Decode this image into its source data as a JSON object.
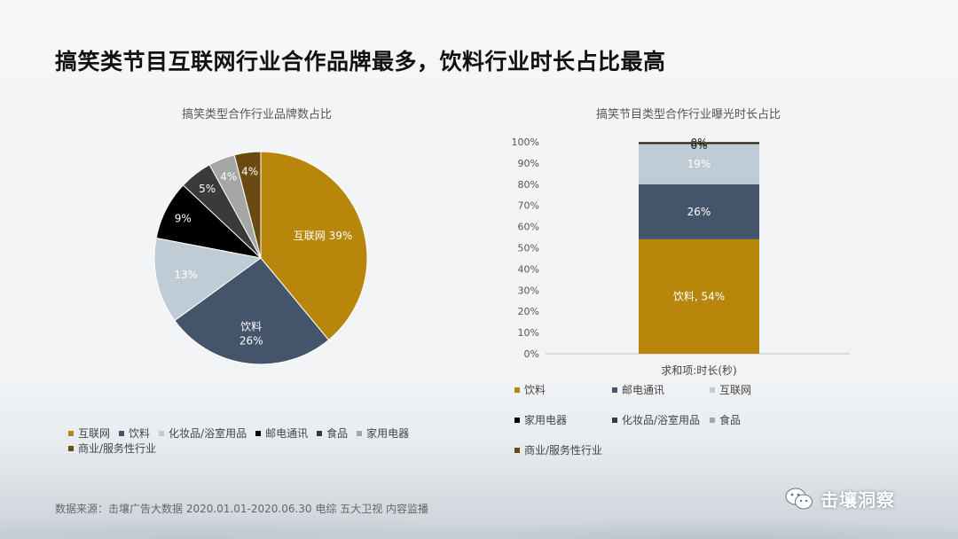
{
  "title": "搞笑类节目互联网行业合作品牌最多，饮料行业时长占比最高",
  "source": "数据来源：击壤广告大数据 2020.01.01-2020.06.30 电综 五大卫视 内容监播",
  "brand": {
    "name": "击壤洞察",
    "icon": "wechat-icon"
  },
  "chart_data": [
    {
      "type": "pie",
      "title": "搞笑类型合作行业品牌数占比",
      "legend_position": "bottom",
      "slices": [
        {
          "name": "互联网",
          "value": 39,
          "color": "#b8860b",
          "label": "互联网 39%",
          "label_color": "#ffffff"
        },
        {
          "name": "饮料",
          "value": 26,
          "color": "#44546a",
          "label": "饮料\n26%",
          "label_color": "#ffffff"
        },
        {
          "name": "化妆品/浴室用品",
          "value": 13,
          "color": "#bfcbd5",
          "label": "13%",
          "label_color": "#ffffff"
        },
        {
          "name": "邮电通讯",
          "value": 9,
          "color": "#000000",
          "label": "9%",
          "label_color": "#ffffff"
        },
        {
          "name": "食品",
          "value": 5,
          "color": "#3a3a3a",
          "label": "5%",
          "label_color": "#ffffff"
        },
        {
          "name": "家用电器",
          "value": 4,
          "color": "#a6a6a6",
          "label": "4%",
          "label_color": "#ffffff"
        },
        {
          "name": "商业/服务性行业",
          "value": 4,
          "color": "#6b4a12",
          "label": "4%",
          "label_color": "#ffffff"
        }
      ]
    },
    {
      "type": "bar",
      "stacked": true,
      "percent": true,
      "title": "搞笑节目类型合作行业曝光时长占比",
      "xlabel": "求和项:时长(秒)",
      "ylim": [
        0,
        100
      ],
      "yticks": [
        "0%",
        "10%",
        "20%",
        "30%",
        "40%",
        "50%",
        "60%",
        "70%",
        "80%",
        "90%",
        "100%"
      ],
      "legend_position": "bottom",
      "series": [
        {
          "name": "饮料",
          "value": 54,
          "color": "#b8860b",
          "label": "饮料, 54%",
          "label_color": "#ffffff"
        },
        {
          "name": "邮电通讯",
          "value": 26,
          "color": "#44546a",
          "label": "26%",
          "label_color": "#ffffff"
        },
        {
          "name": "互联网",
          "value": 19,
          "color": "#bfcbd5",
          "label": "19%",
          "label_color": "#ffffff"
        },
        {
          "name": "家用电器",
          "value": 0.4,
          "color": "#000000",
          "label": "0%",
          "label_color": "#222222"
        },
        {
          "name": "化妆品/浴室用品",
          "value": 0.3,
          "color": "#2f3b4a",
          "label": "0%",
          "label_color": "#222222"
        },
        {
          "name": "食品",
          "value": 0.2,
          "color": "#a6a6a6",
          "label": "",
          "label_color": "#222222"
        },
        {
          "name": "商业/服务性行业",
          "value": 0.1,
          "color": "#6b4a12",
          "label": "",
          "label_color": "#222222"
        }
      ]
    }
  ]
}
